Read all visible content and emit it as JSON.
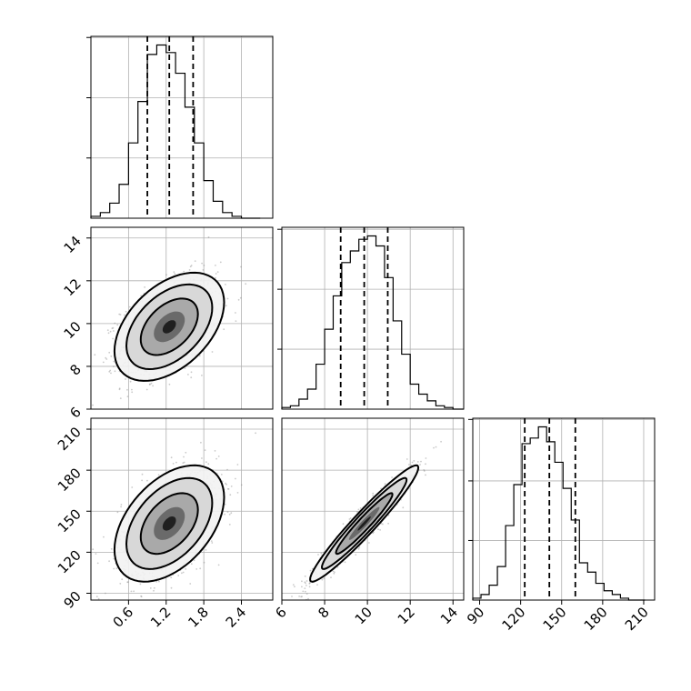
{
  "chart_data": {
    "type": "corner",
    "grid": true,
    "parameters": [
      {
        "id": "p0",
        "range": [
          0.0,
          2.9
        ],
        "ticks": [
          0.6,
          1.2,
          1.8,
          2.4
        ],
        "tick_labels": [
          "0.6",
          "1.2",
          "1.8",
          "2.4"
        ],
        "quantiles": [
          0.9,
          1.25,
          1.63
        ],
        "hist_edges": [
          0.0,
          0.15,
          0.3,
          0.45,
          0.6,
          0.75,
          0.9,
          1.05,
          1.2,
          1.35,
          1.5,
          1.65,
          1.8,
          1.95,
          2.1,
          2.25,
          2.4,
          2.55,
          2.7
        ],
        "hist_counts": [
          1,
          3,
          8,
          18,
          40,
          62,
          87,
          92,
          88,
          77,
          59,
          40,
          20,
          9,
          3,
          1,
          0,
          0
        ]
      },
      {
        "id": "p1",
        "range": [
          6.0,
          14.5
        ],
        "ticks": [
          6,
          8,
          10,
          12,
          14
        ],
        "tick_labels": [
          "6",
          "8",
          "10",
          "12",
          "14"
        ],
        "quantiles": [
          8.75,
          9.85,
          10.95
        ],
        "hist_edges": [
          6.0,
          6.4,
          6.8,
          7.2,
          7.6,
          8.0,
          8.4,
          8.8,
          9.2,
          9.6,
          10.0,
          10.4,
          10.8,
          11.2,
          11.6,
          12.0,
          12.4,
          12.8,
          13.2,
          13.6,
          14.0,
          14.5
        ],
        "hist_counts": [
          1,
          2,
          6,
          12,
          27,
          48,
          68,
          88,
          95,
          102,
          104,
          98,
          79,
          53,
          33,
          15,
          9,
          5,
          2,
          1,
          0
        ]
      },
      {
        "id": "p2",
        "range": [
          85,
          218
        ],
        "ticks": [
          90,
          120,
          150,
          180,
          210
        ],
        "tick_labels": [
          "90",
          "120",
          "150",
          "180",
          "210"
        ],
        "quantiles": [
          123,
          141,
          160
        ],
        "hist_edges": [
          85,
          91,
          97,
          103,
          109,
          115,
          121,
          127,
          133,
          139,
          145,
          151,
          157,
          163,
          169,
          175,
          181,
          187,
          193,
          199,
          205,
          211
        ],
        "hist_counts": [
          1,
          3,
          8,
          18,
          40,
          62,
          84,
          87,
          93,
          85,
          74,
          60,
          43,
          20,
          15,
          9,
          5,
          3,
          1,
          0,
          0
        ]
      }
    ],
    "pairs": [
      {
        "x": "p0",
        "y": "p1",
        "center": [
          1.25,
          9.85
        ],
        "sd": [
          0.38,
          1.1
        ],
        "rho": 0.45
      },
      {
        "x": "p0",
        "y": "p2",
        "center": [
          1.25,
          141
        ],
        "sd": [
          0.38,
          18.5
        ],
        "rho": 0.45
      },
      {
        "x": "p1",
        "y": "p2",
        "center": [
          9.85,
          141
        ],
        "sd": [
          1.1,
          18.5
        ],
        "rho": 0.96
      }
    ]
  }
}
